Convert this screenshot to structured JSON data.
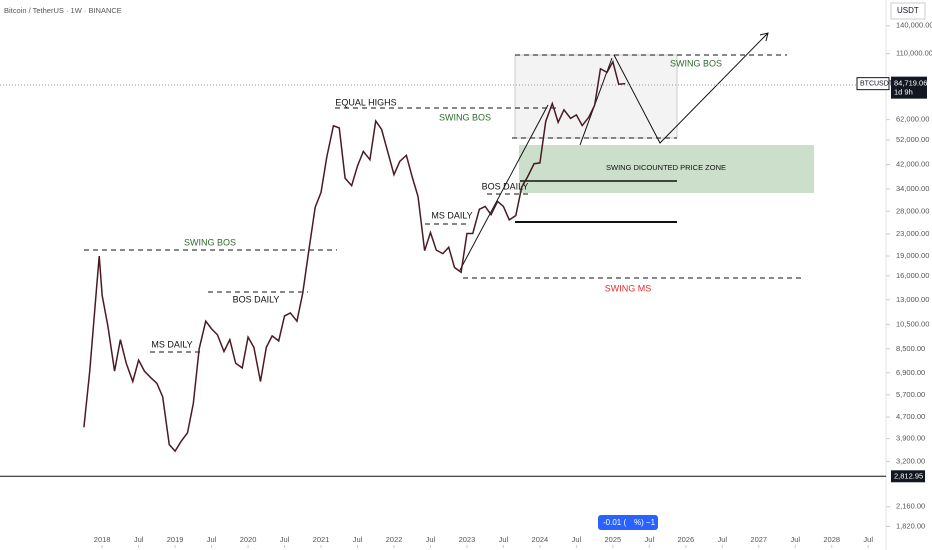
{
  "chart_data": {
    "type": "line",
    "log_scale": true,
    "header": "Bitcoin / TetherUS · 1W · BINANCE",
    "currency": "USDT",
    "symbol": "BTCUSDT",
    "countdown": "1d 9h",
    "last_price": {
      "value": 84719.06,
      "label": "84,719.06"
    },
    "level_price": {
      "value": 2812.95,
      "label": "2,812.95"
    },
    "pill": [
      "-0.01 (",
      "%) −1"
    ],
    "annotations": [
      "EQUAL HIGHS",
      "SWING BOS",
      "SWING BOS",
      "SWING BOS",
      "SWING DICOUNTED PRICE ZONE",
      "BOS DAILY",
      "MS DAILY",
      "BOS DAILY",
      "MS DAILY",
      "SWING MS"
    ],
    "series": [
      {
        "name": "BTCUSDT",
        "color": "#4a1a24",
        "x": [
          2017.75,
          2017.83,
          2017.92,
          2017.96,
          2018.0,
          2018.08,
          2018.17,
          2018.25,
          2018.33,
          2018.42,
          2018.5,
          2018.58,
          2018.67,
          2018.75,
          2018.83,
          2018.92,
          2019.0,
          2019.08,
          2019.17,
          2019.25,
          2019.33,
          2019.42,
          2019.5,
          2019.58,
          2019.67,
          2019.75,
          2019.83,
          2019.92,
          2020.0,
          2020.08,
          2020.17,
          2020.25,
          2020.33,
          2020.42,
          2020.5,
          2020.58,
          2020.67,
          2020.75,
          2020.83,
          2020.92,
          2021.0,
          2021.08,
          2021.17,
          2021.25,
          2021.33,
          2021.42,
          2021.5,
          2021.58,
          2021.67,
          2021.75,
          2021.83,
          2021.92,
          2022.0,
          2022.08,
          2022.17,
          2022.25,
          2022.33,
          2022.42,
          2022.5,
          2022.58,
          2022.67,
          2022.75,
          2022.83,
          2022.92,
          2023.0,
          2023.08,
          2023.17,
          2023.25,
          2023.33,
          2023.42,
          2023.5,
          2023.58,
          2023.67,
          2023.75,
          2023.83,
          2023.92,
          2024.0,
          2024.08,
          2024.17,
          2024.25,
          2024.33,
          2024.42,
          2024.5,
          2024.58,
          2024.67,
          2024.75,
          2024.83,
          2024.92,
          2025.0,
          2025.08,
          2025.17
        ],
        "values": [
          4300,
          7000,
          14000,
          19000,
          13500,
          10300,
          7000,
          9200,
          7500,
          6400,
          7700,
          7000,
          6600,
          6300,
          5600,
          3700,
          3500,
          3800,
          4100,
          5300,
          8500,
          10800,
          10100,
          9600,
          8300,
          9200,
          7500,
          7200,
          9400,
          8600,
          6400,
          8600,
          9500,
          9100,
          11300,
          11600,
          10800,
          13800,
          19700,
          29000,
          33000,
          45000,
          58800,
          57700,
          37300,
          35000,
          41500,
          47100,
          43800,
          61300,
          57000,
          46300,
          38500,
          43200,
          45500,
          37700,
          31800,
          19900,
          23300,
          20000,
          19400,
          20500,
          17200,
          16500,
          23100,
          23100,
          28500,
          29200,
          27200,
          30500,
          29200,
          26000,
          27000,
          34500,
          37700,
          42300,
          42600,
          61100,
          71300,
          60600,
          67500,
          62700,
          64600,
          58900,
          63300,
          70200,
          96400,
          93400,
          102400,
          84300,
          84719.06
        ]
      }
    ],
    "xlim": [
      2016.6,
      2028.73
    ],
    "xticks": [
      2018,
      {
        "value": 2018.5,
        "label": "Jul"
      },
      2019,
      {
        "value": 2019.5,
        "label": "Jul"
      },
      2020,
      {
        "value": 2020.5,
        "label": "Jul"
      },
      2021,
      {
        "value": 2021.5,
        "label": "Jul"
      },
      2022,
      {
        "value": 2022.5,
        "label": "Jul"
      },
      2023,
      {
        "value": 2023.5,
        "label": "Jul"
      },
      2024,
      {
        "value": 2024.5,
        "label": "Jul"
      },
      2025,
      {
        "value": 2025.5,
        "label": "Jul"
      },
      2026,
      {
        "value": 2026.5,
        "label": "Jul"
      },
      2027,
      {
        "value": 2027.5,
        "label": "Jul"
      },
      2028,
      {
        "value": 2028.5,
        "label": "Jul"
      }
    ],
    "ylim": [
      1550,
      175000
    ],
    "yticks": [
      {
        "value": 140000,
        "label": "140,000.00"
      },
      {
        "value": 110000,
        "label": "110,000.00"
      },
      {
        "value": 62000,
        "label": "62,000.00"
      },
      {
        "value": 52000,
        "label": "52,000.00"
      },
      {
        "value": 42000,
        "label": "42,000.00"
      },
      {
        "value": 34000,
        "label": "34,000.00"
      },
      {
        "value": 28000,
        "label": "28,000.00"
      },
      {
        "value": 23000,
        "label": "23,000.00"
      },
      {
        "value": 19000,
        "label": "19,000.00"
      },
      {
        "value": 16000,
        "label": "16,000.00"
      },
      {
        "value": 13000,
        "label": "13,000.00"
      },
      {
        "value": 10500,
        "label": "10,500.00"
      },
      {
        "value": 8500,
        "label": "8,500.00"
      },
      {
        "value": 6900,
        "label": "6,900.00"
      },
      {
        "value": 5700,
        "label": "5,700.00"
      },
      {
        "value": 4700,
        "label": "4,700.00"
      },
      {
        "value": 3900,
        "label": "3,900.00"
      },
      {
        "value": 3200,
        "label": "3,200.00"
      },
      {
        "value": 2160,
        "label": "2,160.00"
      },
      {
        "value": 1820,
        "label": "1,820.00"
      }
    ]
  }
}
